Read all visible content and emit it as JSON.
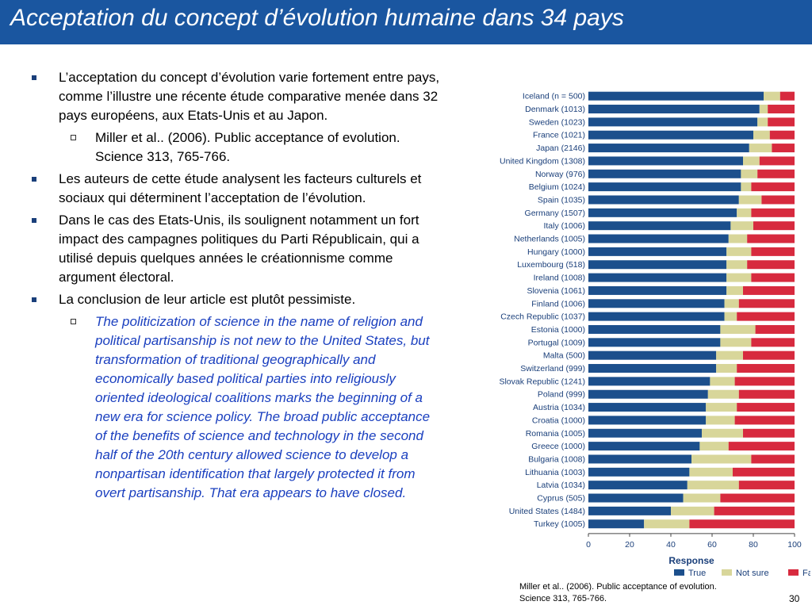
{
  "title": "Acceptation du concept d’évolution humaine dans 34 pays",
  "bullets": [
    {
      "level": 1,
      "text": "L’acceptation du concept d’évolution varie fortement entre pays, comme l’illustre une récente étude comparative menée dans 32 pays européens, aux Etats-Unis et au Japon."
    },
    {
      "level": 2,
      "text": "Miller et al.. (2006). Public acceptance of evolution. Science 313, 765-766."
    },
    {
      "level": 1,
      "text": "Les auteurs de cette étude analysent les facteurs culturels et sociaux qui déterminent l’acceptation de l’évolution."
    },
    {
      "level": 1,
      "text": "Dans le cas des Etats-Unis, ils soulignent notamment un fort impact des campagnes politiques du Parti Républicain, qui a utilisé  depuis quelques années le créationnisme comme argument électoral."
    },
    {
      "level": 1,
      "text": "La conclusion de leur article est plutôt pessimiste."
    },
    {
      "level": 2,
      "style": "quote",
      "text": "The politicization of science in the name of religion and political partisanship is not new to the United States, but transformation of traditional geographically and economically based political parties into religiously oriented ideological coalitions marks the beginning of a new era for science policy. The broad public acceptance of the benefits of science and technology in the second half of the 20th century allowed science to develop a nonpartisan identification that largely protected it from overt partisanship. That era appears to have closed."
    }
  ],
  "caption_line1": "Miller et al.. (2006). Public acceptance of evolution.",
  "caption_line2": "Science 313, 765-766.",
  "slide_number": "30",
  "chart_data": {
    "type": "bar",
    "orientation": "horizontal",
    "stacked": true,
    "categories": [
      "Iceland (n = 500)",
      "Denmark (1013)",
      "Sweden (1023)",
      "France (1021)",
      "Japan (2146)",
      "United Kingdom (1308)",
      "Norway (976)",
      "Belgium (1024)",
      "Spain (1035)",
      "Germany (1507)",
      "Italy (1006)",
      "Netherlands (1005)",
      "Hungary (1000)",
      "Luxembourg (518)",
      "Ireland (1008)",
      "Slovenia (1061)",
      "Finland (1006)",
      "Czech Republic (1037)",
      "Estonia (1000)",
      "Portugal (1009)",
      "Malta (500)",
      "Switzerland (999)",
      "Slovak Republic (1241)",
      "Poland (999)",
      "Austria (1034)",
      "Croatia (1000)",
      "Romania (1005)",
      "Greece (1000)",
      "Bulgaria (1008)",
      "Lithuania (1003)",
      "Latvia (1034)",
      "Cyprus (505)",
      "United States (1484)",
      "Turkey (1005)"
    ],
    "series": [
      {
        "name": "True",
        "color": "#1c4f8c",
        "values": [
          85,
          83,
          82,
          80,
          78,
          75,
          74,
          74,
          73,
          72,
          69,
          68,
          67,
          67,
          67,
          67,
          66,
          66,
          64,
          64,
          62,
          62,
          59,
          58,
          57,
          57,
          55,
          54,
          50,
          49,
          48,
          46,
          40,
          27
        ]
      },
      {
        "name": "Not sure",
        "color": "#d8d69a",
        "values": [
          8,
          4,
          5,
          8,
          11,
          8,
          8,
          5,
          11,
          7,
          11,
          9,
          12,
          10,
          12,
          8,
          7,
          6,
          17,
          15,
          13,
          10,
          12,
          15,
          15,
          14,
          20,
          14,
          29,
          21,
          25,
          18,
          21,
          22
        ]
      },
      {
        "name": "False",
        "color": "#d72a3e",
        "values": [
          7,
          13,
          13,
          12,
          11,
          17,
          18,
          21,
          16,
          21,
          20,
          23,
          21,
          23,
          21,
          25,
          27,
          28,
          19,
          21,
          25,
          28,
          29,
          27,
          28,
          29,
          25,
          32,
          21,
          30,
          27,
          36,
          39,
          51
        ]
      }
    ],
    "xlabel": "Response",
    "xlim": [
      0,
      100
    ],
    "xticks": [
      "0",
      "20",
      "40",
      "60",
      "80",
      "100"
    ],
    "legend": "bottom"
  }
}
